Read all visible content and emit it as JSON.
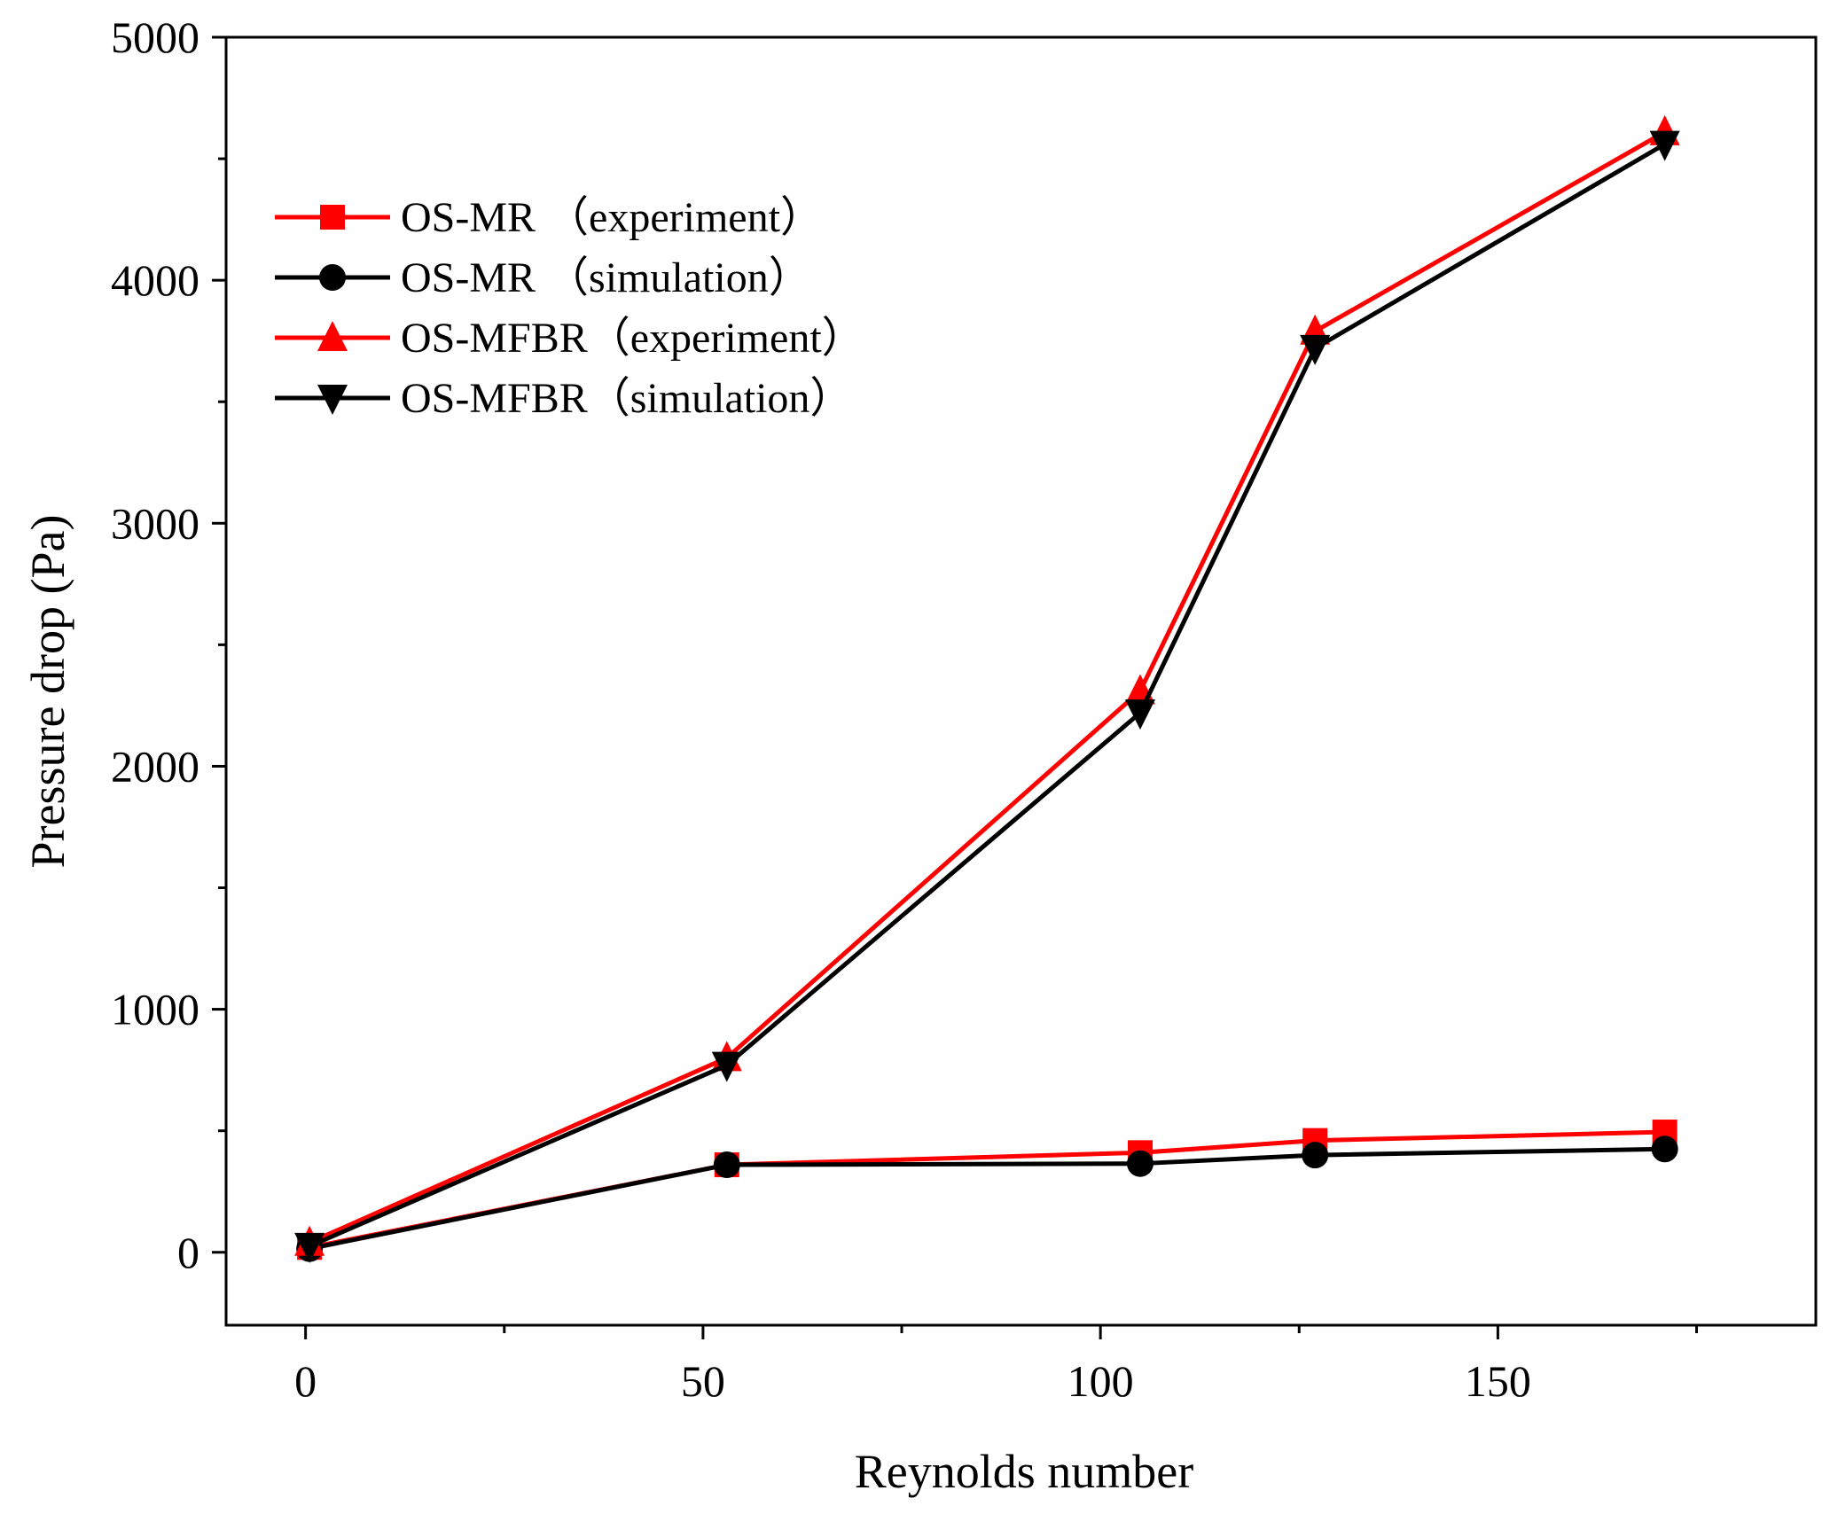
{
  "chart_data": {
    "type": "line",
    "title": "",
    "xlabel": "Reynolds number",
    "ylabel": "Pressure drop (Pa)",
    "xlim": [
      -10,
      190
    ],
    "ylim": [
      -300,
      5000
    ],
    "x_ticks": [
      "0",
      "50",
      "100",
      "150"
    ],
    "y_ticks": [
      "0",
      "1000",
      "2000",
      "3000",
      "4000",
      "5000"
    ],
    "legend_position": "top-left",
    "colors": {
      "red": "#ff0000",
      "black": "#000000"
    },
    "series": [
      {
        "name": "OS-MR （experiment）",
        "color": "#ff0000",
        "marker": "square",
        "x": [
          0.5,
          53,
          105,
          127,
          171
        ],
        "y": [
          20,
          360,
          410,
          460,
          495
        ]
      },
      {
        "name": "OS-MR （simulation）",
        "color": "#000000",
        "marker": "circle",
        "x": [
          0.5,
          53,
          105,
          127,
          171
        ],
        "y": [
          15,
          360,
          365,
          400,
          425
        ]
      },
      {
        "name": "OS-MFBR（experiment）",
        "color": "#ff0000",
        "marker": "triangle-up",
        "x": [
          0.5,
          53,
          105,
          127,
          171
        ],
        "y": [
          40,
          800,
          2310,
          3790,
          4610
        ]
      },
      {
        "name": "OS-MFBR（simulation）",
        "color": "#000000",
        "marker": "triangle-down",
        "x": [
          0.5,
          53,
          105,
          127,
          171
        ],
        "y": [
          25,
          770,
          2220,
          3720,
          4560
        ]
      }
    ]
  }
}
